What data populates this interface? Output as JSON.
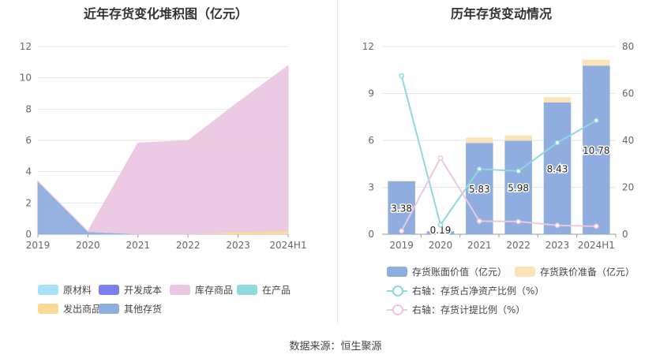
{
  "left_chart": {
    "title": "近年存货变化堆积图（亿元）",
    "legend": [
      {
        "label": "原材料",
        "color": "#a8e1f8"
      },
      {
        "label": "开发成本",
        "color": "#7b80f0"
      },
      {
        "label": "库存商品",
        "color": "#ecc7e1"
      },
      {
        "label": "在产品",
        "color": "#8ed9dc"
      },
      {
        "label": "发出商品",
        "color": "#fbd996"
      },
      {
        "label": "其他存货",
        "color": "#8fadde"
      }
    ]
  },
  "right_chart": {
    "title": "历年存货变动情况",
    "legend": [
      {
        "label": "存货账面价值（亿元）",
        "color": "#8fadde",
        "kind": "bar"
      },
      {
        "label": "存货跌价准备（亿元）",
        "color": "#fde3b8",
        "kind": "bar"
      },
      {
        "label": "右轴：存货占净资产比例（%）",
        "color": "#8ed9dc",
        "kind": "line"
      },
      {
        "label": "右轴：存货计提比例（%）",
        "color": "#ecc7e1",
        "kind": "line"
      }
    ]
  },
  "source": "数据来源：恒生聚源",
  "chart_data": [
    {
      "type": "area",
      "stacked": true,
      "title": "近年存货变化堆积图（亿元）",
      "categories": [
        "2019",
        "2020",
        "2021",
        "2022",
        "2023",
        "2024H1"
      ],
      "ylim": [
        0,
        12
      ],
      "yticks": [
        0,
        2,
        4,
        6,
        8,
        10,
        12
      ],
      "grid": true,
      "legend_position": "bottom",
      "series": [
        {
          "name": "其他存货",
          "color": "#8fadde",
          "values": [
            3.38,
            0.17,
            0.02,
            0.02,
            0.02,
            0.02
          ]
        },
        {
          "name": "原材料",
          "color": "#a8e1f8",
          "values": [
            0,
            0,
            0,
            0,
            0,
            0
          ]
        },
        {
          "name": "开发成本",
          "color": "#7b80f0",
          "values": [
            0,
            0,
            0,
            0,
            0,
            0
          ]
        },
        {
          "name": "在产品",
          "color": "#8ed9dc",
          "values": [
            0,
            0,
            0,
            0,
            0,
            0
          ]
        },
        {
          "name": "发出商品",
          "color": "#fbd996",
          "values": [
            0,
            0,
            0,
            0,
            0.15,
            0.2
          ]
        },
        {
          "name": "库存商品",
          "color": "#ecc7e1",
          "values": [
            0,
            0.02,
            5.81,
            5.96,
            8.26,
            10.56
          ]
        }
      ]
    },
    {
      "type": "bar",
      "stacked": true,
      "title": "历年存货变动情况",
      "categories": [
        "2019",
        "2020",
        "2021",
        "2022",
        "2023",
        "2024H1"
      ],
      "ylim": [
        0,
        12
      ],
      "yticks": [
        0,
        3,
        6,
        9,
        12
      ],
      "y2lim": [
        0,
        80
      ],
      "y2ticks": [
        0,
        20,
        40,
        60,
        80
      ],
      "grid": true,
      "legend_position": "bottom",
      "series": [
        {
          "name": "存货账面价值（亿元）",
          "type": "bar",
          "color": "#8fadde",
          "values": [
            3.38,
            0.19,
            5.83,
            5.98,
            8.43,
            10.78
          ],
          "labels": [
            "3.38",
            "0.19",
            "5.83",
            "5.98",
            "8.43",
            "10.78"
          ]
        },
        {
          "name": "存货跌价准备（亿元）",
          "type": "bar",
          "color": "#fde3b8",
          "values": [
            0.05,
            0,
            0.35,
            0.35,
            0.33,
            0.38
          ]
        },
        {
          "name": "右轴：存货占净资产比例（%）",
          "type": "line",
          "axis": "right",
          "color": "#8ed9dc",
          "values": [
            67.5,
            4.0,
            27.8,
            26.9,
            39.0,
            48.5
          ]
        },
        {
          "name": "右轴：存货计提比例（%）",
          "type": "line",
          "axis": "right",
          "color": "#ecc7e1",
          "values": [
            1.4,
            32.5,
            5.6,
            5.4,
            3.8,
            3.4
          ]
        }
      ]
    }
  ]
}
